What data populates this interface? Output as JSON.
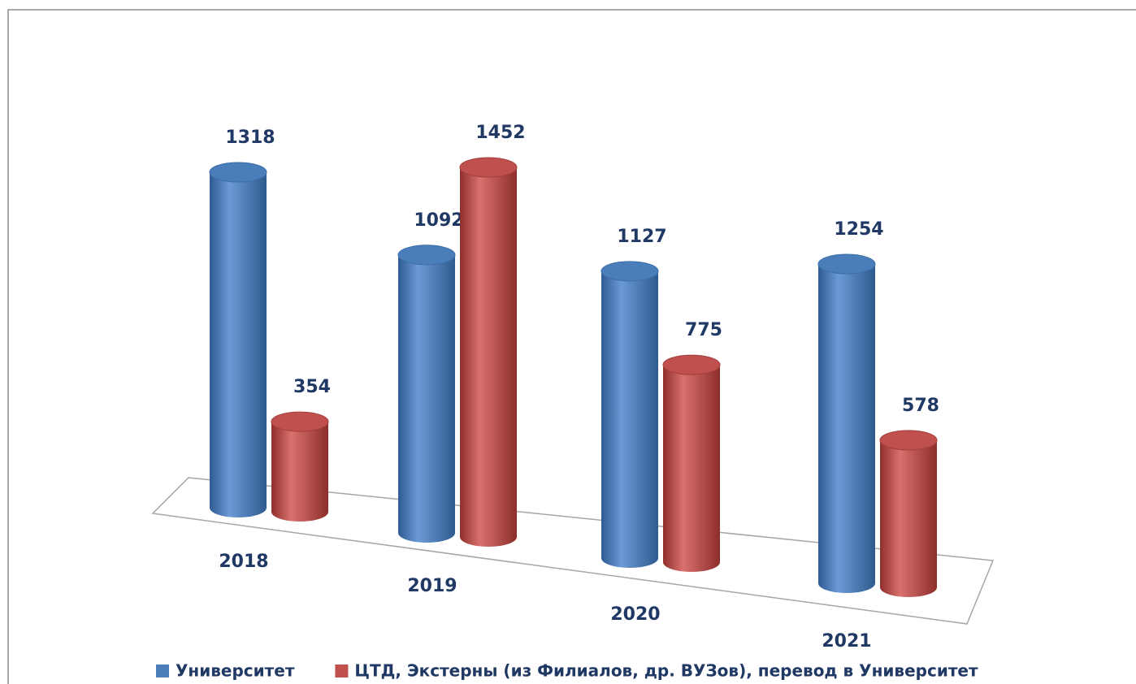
{
  "chart_data": {
    "type": "bar3d-cylinder",
    "categories": [
      "2018",
      "2019",
      "2020",
      "2021"
    ],
    "series": [
      {
        "name": "Университет",
        "color": "#4a7ebb",
        "values": [
          1318,
          1092,
          1127,
          1254
        ]
      },
      {
        "name": "ЦТД, Экстерны (из Филиалов, др. ВУЗов), перевод в Университет",
        "color": "#c0504d",
        "values": [
          354,
          1452,
          775,
          578
        ]
      }
    ],
    "legend": "bottom"
  }
}
